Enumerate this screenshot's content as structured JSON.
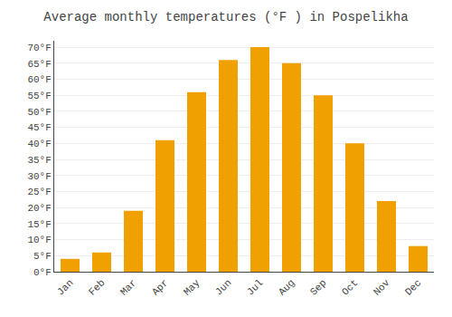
{
  "chart_data": {
    "type": "bar",
    "title": "Average monthly temperatures (°F ) in Pospelikha",
    "categories": [
      "Jan",
      "Feb",
      "Mar",
      "Apr",
      "May",
      "Jun",
      "Jul",
      "Aug",
      "Sep",
      "Oct",
      "Nov",
      "Dec"
    ],
    "values": [
      4,
      6,
      19,
      41,
      56,
      66,
      70,
      65,
      55,
      40,
      22,
      8
    ],
    "color": "#F0A000",
    "ylim": [
      0,
      72
    ],
    "yticks": [
      {
        "value": 0,
        "label": "0°F"
      },
      {
        "value": 5,
        "label": "5°F"
      },
      {
        "value": 10,
        "label": "10°F"
      },
      {
        "value": 15,
        "label": "15°F"
      },
      {
        "value": 20,
        "label": "20°F"
      },
      {
        "value": 25,
        "label": "25°F"
      },
      {
        "value": 30,
        "label": "30°F"
      },
      {
        "value": 35,
        "label": "35°F"
      },
      {
        "value": 40,
        "label": "40°F"
      },
      {
        "value": 45,
        "label": "45°F"
      },
      {
        "value": 50,
        "label": "50°F"
      },
      {
        "value": 55,
        "label": "55°F"
      },
      {
        "value": 60,
        "label": "60°F"
      },
      {
        "value": 65,
        "label": "65°F"
      },
      {
        "value": 70,
        "label": "70°F"
      }
    ],
    "grid": true
  }
}
